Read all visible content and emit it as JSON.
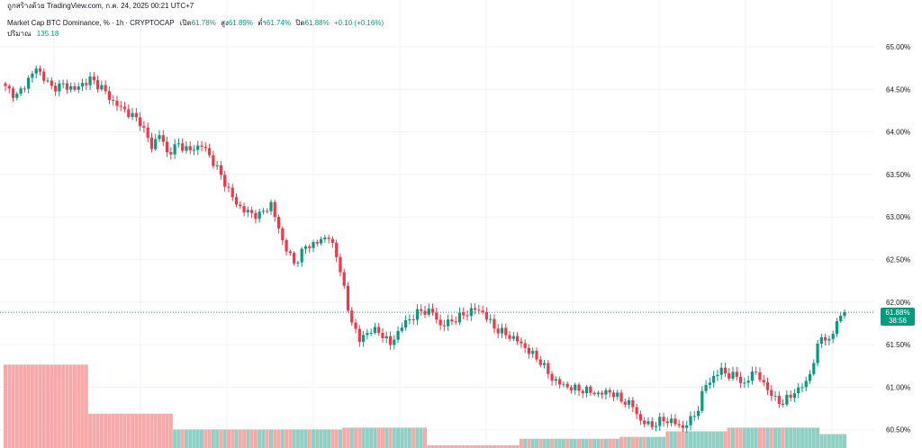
{
  "attribution": "ถูกสร้างด้วย TradingView.com, ก.ค. 24, 2025 00:21 UTC+7",
  "symbol": {
    "name": "Market Cap BTC Dominance, %",
    "interval": "1h",
    "source": "CRYPTOCAP",
    "open_label": "เปิด",
    "open": "61.78%",
    "high_label": "สูง",
    "high": "61.89%",
    "low_label": "ต่ำ",
    "low": "61.74%",
    "close_label": "ปิด",
    "close": "61.88%",
    "change": "+0.10 (+0.16%)"
  },
  "volume": {
    "label": "ปริมาณ",
    "value": "135.18"
  },
  "price_label": {
    "price": "61.88%",
    "countdown": "38:56"
  },
  "colors": {
    "up": "#089981",
    "down": "#f23645",
    "vol_up": "#8fcfc4",
    "vol_down": "#f7a9a9",
    "grid": "#f0f3fa",
    "price_line": "#089981"
  },
  "chart_data": {
    "type": "candlestick",
    "y_axis": {
      "ticks": [
        "65.00%",
        "64.50%",
        "64.00%",
        "63.50%",
        "63.00%",
        "62.50%",
        "62.00%",
        "61.50%",
        "61.00%",
        "60.50%"
      ],
      "range": [
        60.4,
        65.2
      ],
      "position": "right"
    },
    "current_price": 61.88,
    "close_path": [
      [
        0,
        64.52
      ],
      [
        3,
        64.42
      ],
      [
        5,
        64.55
      ],
      [
        8,
        64.75
      ],
      [
        12,
        64.52
      ],
      [
        15,
        64.55
      ],
      [
        18,
        64.5
      ],
      [
        22,
        64.62
      ],
      [
        25,
        64.52
      ],
      [
        28,
        64.35
      ],
      [
        32,
        64.22
      ],
      [
        35,
        64.12
      ],
      [
        38,
        63.82
      ],
      [
        40,
        63.98
      ],
      [
        42,
        63.75
      ],
      [
        45,
        63.85
      ],
      [
        48,
        63.78
      ],
      [
        51,
        63.85
      ],
      [
        54,
        63.65
      ],
      [
        57,
        63.4
      ],
      [
        60,
        63.15
      ],
      [
        63,
        63.05
      ],
      [
        66,
        63.02
      ],
      [
        69,
        63.15
      ],
      [
        72,
        62.72
      ],
      [
        75,
        62.45
      ],
      [
        78,
        62.65
      ],
      [
        81,
        62.7
      ],
      [
        84,
        62.78
      ],
      [
        87,
        62.4
      ],
      [
        89,
        61.9
      ],
      [
        92,
        61.55
      ],
      [
        95,
        61.68
      ],
      [
        98,
        61.62
      ],
      [
        100,
        61.5
      ],
      [
        103,
        61.72
      ],
      [
        105,
        61.8
      ],
      [
        108,
        61.9
      ],
      [
        111,
        61.88
      ],
      [
        113,
        61.72
      ],
      [
        116,
        61.78
      ],
      [
        119,
        61.85
      ],
      [
        122,
        61.92
      ],
      [
        124,
        61.88
      ],
      [
        127,
        61.7
      ],
      [
        130,
        61.62
      ],
      [
        133,
        61.55
      ],
      [
        136,
        61.42
      ],
      [
        139,
        61.3
      ],
      [
        142,
        61.1
      ],
      [
        145,
        61.02
      ],
      [
        148,
        60.98
      ],
      [
        151,
        60.96
      ],
      [
        154,
        60.92
      ],
      [
        157,
        60.95
      ],
      [
        160,
        60.85
      ],
      [
        163,
        60.78
      ],
      [
        165,
        60.6
      ],
      [
        168,
        60.55
      ],
      [
        171,
        60.62
      ],
      [
        174,
        60.58
      ],
      [
        176,
        60.52
      ],
      [
        178,
        60.62
      ],
      [
        180,
        60.75
      ],
      [
        182,
        61.05
      ],
      [
        184,
        61.1
      ],
      [
        186,
        61.22
      ],
      [
        188,
        61.12
      ],
      [
        190,
        61.15
      ],
      [
        192,
        61.0
      ],
      [
        194,
        61.2
      ],
      [
        196,
        61.1
      ],
      [
        198,
        60.98
      ],
      [
        200,
        60.85
      ],
      [
        202,
        60.82
      ],
      [
        204,
        60.9
      ],
      [
        206,
        60.98
      ],
      [
        208,
        61.05
      ],
      [
        210,
        61.3
      ],
      [
        212,
        61.62
      ],
      [
        214,
        61.52
      ],
      [
        216,
        61.78
      ],
      [
        218,
        61.88
      ]
    ],
    "volume_steps": [
      [
        0,
        22,
        0.9,
        "down"
      ],
      [
        22,
        44,
        0.37,
        "down"
      ],
      [
        44,
        88,
        0.2,
        "mixed"
      ],
      [
        88,
        110,
        0.22,
        "mixed"
      ],
      [
        110,
        134,
        0.03,
        "down"
      ],
      [
        134,
        160,
        0.1,
        "mixed"
      ],
      [
        160,
        172,
        0.12,
        "mixed"
      ],
      [
        172,
        188,
        0.18,
        "mixed"
      ],
      [
        188,
        212,
        0.22,
        "mixed"
      ],
      [
        212,
        219,
        0.15,
        "mixed"
      ]
    ]
  }
}
